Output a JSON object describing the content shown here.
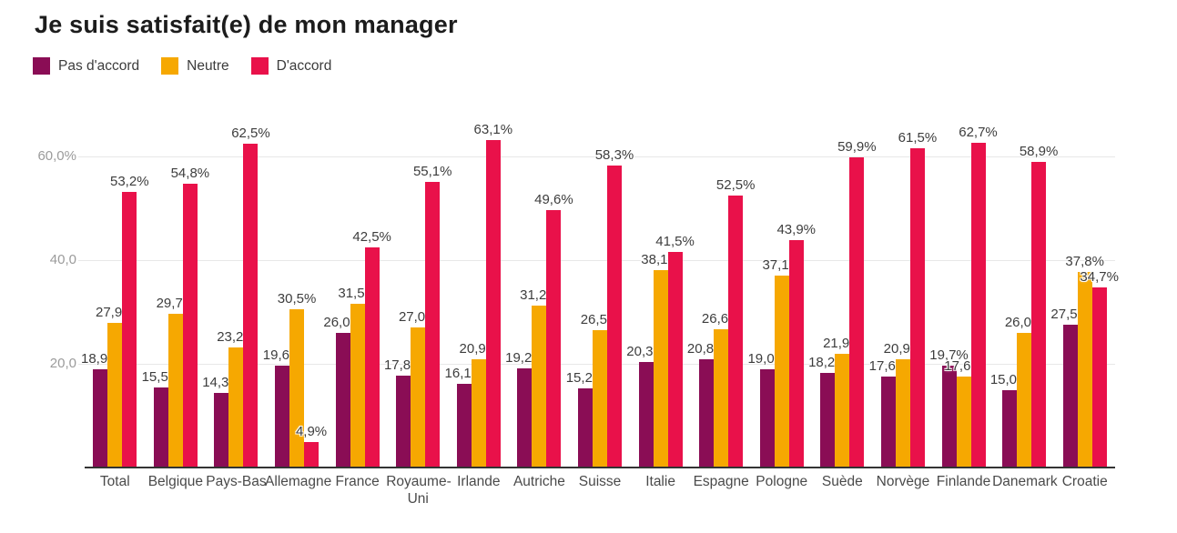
{
  "title": "Je suis satisfait(e) de mon manager",
  "legend": [
    {
      "label": "Pas d'accord",
      "color": "#8A0D55"
    },
    {
      "label": "Neutre",
      "color": "#F6A801"
    },
    {
      "label": "D'accord",
      "color": "#E9114A"
    }
  ],
  "chart_data": {
    "type": "bar",
    "title": "Je suis satisfait(e) de mon manager",
    "categories": [
      "Total",
      "Belgique",
      "Pays-Bas",
      "Allemagne",
      "France",
      "Royaume-Uni",
      "Irlande",
      "Autriche",
      "Suisse",
      "Italie",
      "Espagne",
      "Pologne",
      "Suède",
      "Norvège",
      "Finlande",
      "Danemark",
      "Croatie"
    ],
    "series": [
      {
        "name": "Pas d'accord",
        "color": "#8A0D55",
        "values": [
          18.9,
          15.5,
          14.3,
          19.6,
          26.0,
          17.8,
          16.1,
          19.2,
          15.2,
          20.3,
          20.8,
          19.0,
          18.2,
          17.6,
          19.7,
          15.0,
          27.5
        ]
      },
      {
        "name": "Neutre",
        "color": "#F6A801",
        "values": [
          27.9,
          29.7,
          23.2,
          30.5,
          31.5,
          27.0,
          20.9,
          31.2,
          26.5,
          38.1,
          26.6,
          37.1,
          21.9,
          20.9,
          17.6,
          26.0,
          37.8
        ]
      },
      {
        "name": "D'accord",
        "color": "#E9114A",
        "values": [
          53.2,
          54.8,
          62.5,
          4.9,
          42.5,
          55.1,
          63.1,
          49.6,
          58.3,
          41.5,
          52.5,
          43.9,
          59.9,
          61.5,
          62.7,
          58.9,
          34.7
        ]
      }
    ],
    "value_suffix": "%",
    "decimal_separator": ",",
    "data_labels": true,
    "y_ticks": [
      {
        "value": 20,
        "label": "20,0"
      },
      {
        "value": 40,
        "label": "40,0"
      },
      {
        "value": 60,
        "label": "60,0%"
      }
    ],
    "ylim": [
      0,
      70
    ],
    "grid": true,
    "xlabel": "",
    "ylabel": "",
    "legend_position": "top-left"
  }
}
